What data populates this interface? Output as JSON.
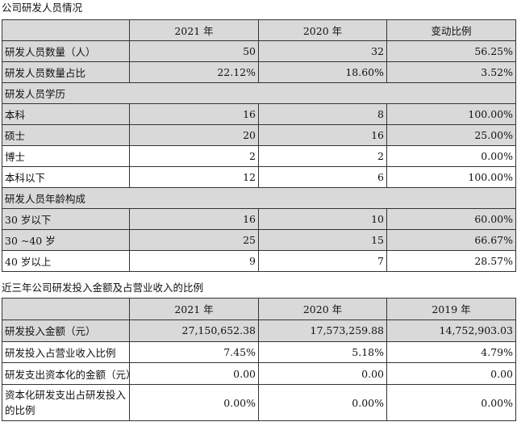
{
  "section1": {
    "title": "公司研发人员情况",
    "headers": [
      "",
      "2021 年",
      "2020 年",
      "变动比例"
    ],
    "rows": [
      {
        "label": "研发人员数量（人）",
        "cells": [
          "50",
          "32",
          "56.25%"
        ],
        "shaded": true
      },
      {
        "label": "研发人员数量占比",
        "cells": [
          "22.12%",
          "18.60%",
          "3.52%"
        ],
        "shaded": true
      },
      {
        "label": "研发人员学历",
        "cells": [],
        "shaded": true,
        "group": true
      },
      {
        "label": "本科",
        "cells": [
          "16",
          "8",
          "100.00%"
        ],
        "shaded": true
      },
      {
        "label": "硕士",
        "cells": [
          "20",
          "16",
          "25.00%"
        ],
        "shaded": true
      },
      {
        "label": "博士",
        "cells": [
          "2",
          "2",
          "0.00%"
        ],
        "shaded": false
      },
      {
        "label": "本科以下",
        "cells": [
          "12",
          "6",
          "100.00%"
        ],
        "shaded": false
      },
      {
        "label": "研发人员年龄构成",
        "cells": [],
        "shaded": true,
        "group": true
      },
      {
        "label": "30 岁以下",
        "cells": [
          "16",
          "10",
          "60.00%"
        ],
        "shaded": true
      },
      {
        "label": "30 ~40 岁",
        "cells": [
          "25",
          "15",
          "66.67%"
        ],
        "shaded": true
      },
      {
        "label": "40 岁以上",
        "cells": [
          "9",
          "7",
          "28.57%"
        ],
        "shaded": false
      }
    ]
  },
  "section2": {
    "title": "近三年公司研发投入金额及占营业收入的比例",
    "headers": [
      "",
      "2021 年",
      "2020 年",
      "2019 年"
    ],
    "rows": [
      {
        "label": "研发投入金额（元）",
        "cells": [
          "27,150,652.38",
          "17,573,259.88",
          "14,752,903.03"
        ],
        "shaded": true
      },
      {
        "label": "研发投入占营业收入比例",
        "cells": [
          "7.45%",
          "5.18%",
          "4.79%"
        ],
        "shaded": false
      },
      {
        "label": "研发支出资本化的金额（元）",
        "cells": [
          "0.00",
          "0.00",
          "0.00"
        ],
        "shaded": false
      },
      {
        "label": "资本化研发支出占研发投入的比例",
        "cells": [
          "0.00%",
          "0.00%",
          "0.00%"
        ],
        "shaded": false
      }
    ]
  },
  "colors": {
    "shade": "#d9d9d9",
    "border": "#333333",
    "text": "#111111"
  }
}
